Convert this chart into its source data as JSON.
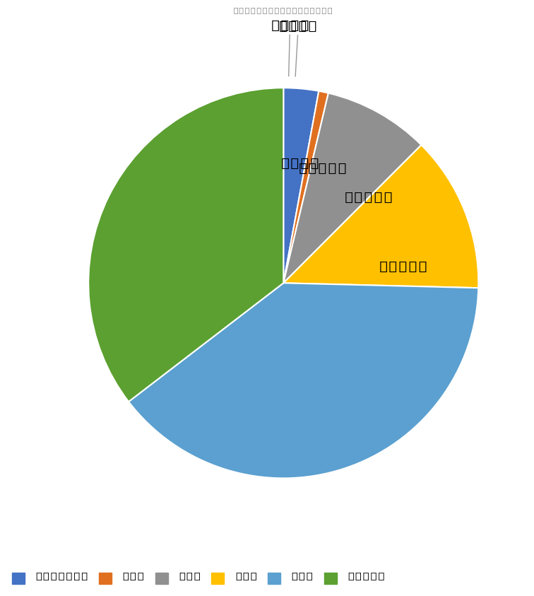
{
  "title": "団体構成員　平均年齢（R1.12）",
  "title_fontsize": 19,
  "labels": [
    "10代・20代",
    "30代",
    "40代",
    "50代",
    "60代",
    "70代以上"
  ],
  "values": [
    2.9,
    0.8,
    8.8,
    12.9,
    39.2,
    35.4
  ],
  "colors": [
    "#4472C4",
    "#E07020",
    "#909090",
    "#FFC000",
    "#5BA0D0",
    "#5BA030"
  ],
  "pct_labels": [
    "2.9%",
    "0.8%",
    "8.8%",
    "12.9%",
    "39.2%",
    "35.4%"
  ],
  "outside_threshold": 4.0,
  "background_color": "#FFFFFF",
  "label_fontsize": 17,
  "legend_fontsize": 13,
  "title_color": "#888888"
}
